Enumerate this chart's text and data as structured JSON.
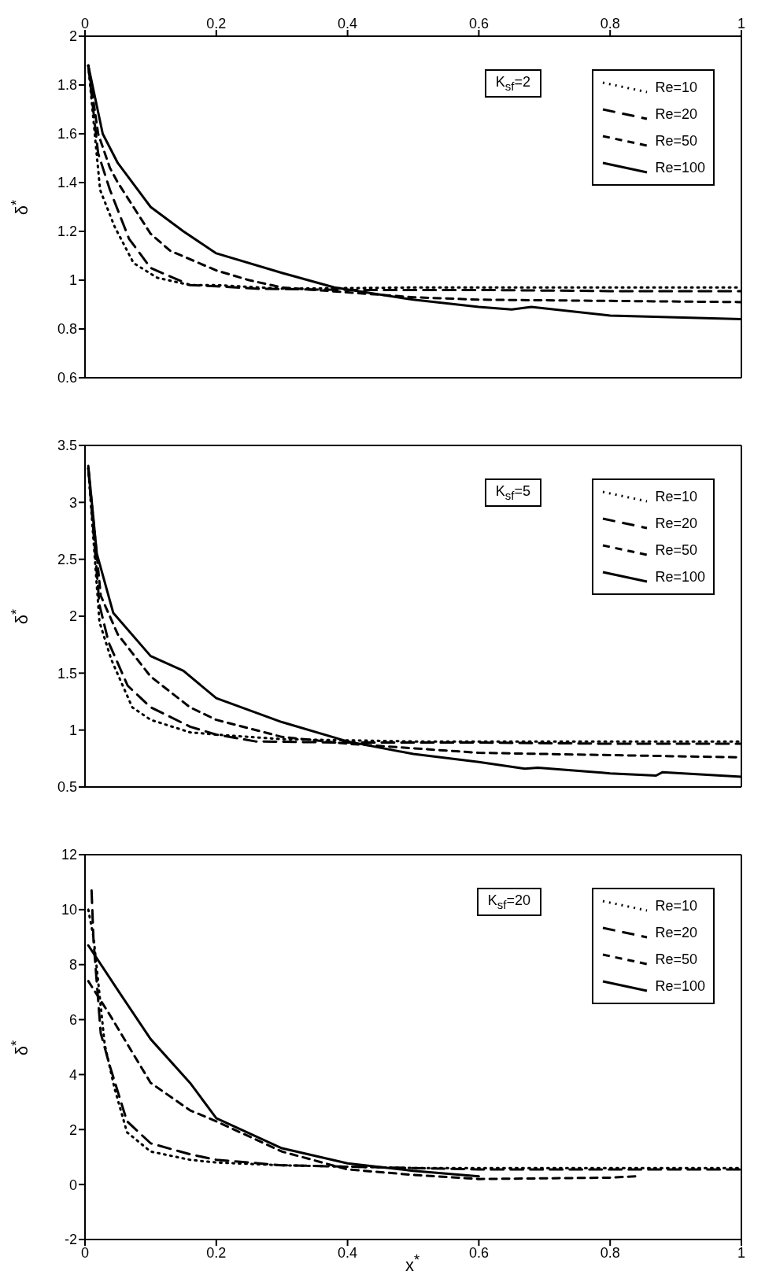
{
  "chart_data": [
    {
      "type": "line",
      "ylabel": "δ$^{*}$",
      "annotations": [
        "K$_{sf}$=2"
      ],
      "xlim": [
        0,
        1
      ],
      "xticks": [
        0,
        0.2,
        0.4,
        0.6,
        0.8,
        1
      ],
      "x2lim": [
        0,
        1
      ],
      "x2ticks": [
        0,
        0.2,
        0.4,
        0.6,
        0.8,
        1
      ],
      "ylim": [
        0.6,
        2
      ],
      "yticks": [
        0.6,
        0.8,
        1,
        1.2,
        1.4,
        1.6,
        1.8,
        2
      ],
      "tick_labels": "y",
      "legend": "top right",
      "marker": "none",
      "series": [
        {
          "name": "Re=10",
          "color": "#000000",
          "line_style": "dotted",
          "x": [
            0.005,
            0.023,
            0.045,
            0.074,
            0.11,
            0.16,
            0.2,
            0.3,
            0.5,
            0.7,
            1
          ],
          "values": [
            1.88,
            1.37,
            1.22,
            1.07,
            1.01,
            0.98,
            0.98,
            0.965,
            0.97,
            0.97,
            0.97
          ]
        },
        {
          "name": "Re=20",
          "color": "#000000",
          "line_style": "dashed",
          "x": [
            0.005,
            0.02,
            0.038,
            0.067,
            0.1,
            0.16,
            0.2,
            0.26,
            0.4,
            0.6,
            0.8,
            1
          ],
          "values": [
            1.88,
            1.52,
            1.37,
            1.17,
            1.05,
            0.98,
            0.975,
            0.965,
            0.96,
            0.96,
            0.955,
            0.955
          ]
        },
        {
          "name": "Re=50",
          "color": "#000000",
          "line_style": "dashed",
          "x": [
            0.005,
            0.02,
            0.038,
            0.05,
            0.1,
            0.13,
            0.2,
            0.25,
            0.3,
            0.4,
            0.5,
            0.6,
            0.8,
            1
          ],
          "values": [
            1.88,
            1.6,
            1.46,
            1.4,
            1.19,
            1.12,
            1.04,
            1.0,
            0.97,
            0.95,
            0.93,
            0.92,
            0.915,
            0.91
          ]
        },
        {
          "name": "Re=100",
          "color": "#000000",
          "line_style": "solid",
          "x": [
            0.005,
            0.027,
            0.05,
            0.1,
            0.15,
            0.2,
            0.3,
            0.38,
            0.5,
            0.6,
            0.65,
            0.68,
            0.8,
            1
          ],
          "values": [
            1.88,
            1.6,
            1.48,
            1.3,
            1.2,
            1.11,
            1.03,
            0.97,
            0.92,
            0.89,
            0.88,
            0.89,
            0.855,
            0.84
          ]
        }
      ]
    },
    {
      "type": "line",
      "ylabel": "δ$^{*}$",
      "annotations": [
        "K$_{sf}$=5"
      ],
      "xlim": [
        0,
        1
      ],
      "xticks": [
        0,
        0.2,
        0.4,
        0.6,
        0.8,
        1
      ],
      "ylim": [
        0.5,
        3.5
      ],
      "yticks": [
        0.5,
        1,
        1.5,
        2,
        2.5,
        3,
        3.5
      ],
      "tick_labels": "y",
      "legend": "top right",
      "marker": "none",
      "series": [
        {
          "name": "Re=10",
          "color": "#000000",
          "line_style": "dotted",
          "x": [
            0.005,
            0.022,
            0.04,
            0.072,
            0.1,
            0.16,
            0.2,
            0.3,
            0.5,
            0.7,
            1
          ],
          "values": [
            3.3,
            1.95,
            1.62,
            1.2,
            1.09,
            0.98,
            0.96,
            0.92,
            0.9,
            0.9,
            0.9
          ]
        },
        {
          "name": "Re=20",
          "color": "#000000",
          "line_style": "dashed",
          "x": [
            0.005,
            0.022,
            0.036,
            0.065,
            0.1,
            0.16,
            0.2,
            0.26,
            0.4,
            0.6,
            0.8,
            1
          ],
          "values": [
            3.3,
            2.1,
            1.77,
            1.39,
            1.2,
            1.03,
            0.96,
            0.9,
            0.89,
            0.89,
            0.88,
            0.88
          ]
        },
        {
          "name": "Re=50",
          "color": "#000000",
          "line_style": "dashed",
          "x": [
            0.005,
            0.024,
            0.05,
            0.1,
            0.16,
            0.2,
            0.3,
            0.4,
            0.6,
            0.8,
            1
          ],
          "values": [
            3.3,
            2.18,
            1.84,
            1.47,
            1.2,
            1.09,
            0.94,
            0.88,
            0.8,
            0.78,
            0.76
          ]
        },
        {
          "name": "Re=100",
          "color": "#000000",
          "line_style": "solid",
          "x": [
            0.005,
            0.018,
            0.043,
            0.1,
            0.15,
            0.2,
            0.3,
            0.4,
            0.5,
            0.6,
            0.67,
            0.69,
            0.8,
            0.87,
            0.88,
            1
          ],
          "values": [
            3.32,
            2.55,
            2.03,
            1.65,
            1.52,
            1.28,
            1.07,
            0.9,
            0.79,
            0.72,
            0.66,
            0.67,
            0.62,
            0.6,
            0.63,
            0.59
          ]
        }
      ]
    },
    {
      "type": "line",
      "xlabel": "x$^{*}$",
      "ylabel": "δ$^{*}$",
      "annotations": [
        "K$_{sf}$=20"
      ],
      "xlim": [
        0,
        1
      ],
      "xticks": [
        0,
        0.2,
        0.4,
        0.6,
        0.8,
        1
      ],
      "ylim": [
        -2,
        12
      ],
      "yticks": [
        -2,
        0,
        2,
        4,
        6,
        8,
        10,
        12
      ],
      "legend": "top right",
      "marker": "none",
      "series": [
        {
          "name": "Re=10",
          "color": "#000000",
          "line_style": "dotted",
          "x": [
            0.005,
            0.013,
            0.03,
            0.045,
            0.064,
            0.1,
            0.16,
            0.2,
            0.3,
            0.5,
            1
          ],
          "values": [
            10,
            9,
            5.1,
            3.5,
            1.9,
            1.2,
            0.9,
            0.8,
            0.7,
            0.6,
            0.6
          ]
        },
        {
          "name": "Re=20",
          "color": "#000000",
          "line_style": "dashed",
          "x": [
            0.01,
            0.013,
            0.024,
            0.038,
            0.064,
            0.1,
            0.16,
            0.2,
            0.3,
            0.5,
            0.6,
            1
          ],
          "values": [
            10.7,
            8.86,
            5.5,
            4.3,
            2.3,
            1.5,
            1.1,
            0.9,
            0.7,
            0.6,
            0.55,
            0.55
          ]
        },
        {
          "name": "Re=50",
          "color": "#000000",
          "line_style": "dashed",
          "x": [
            0.005,
            0.035,
            0.1,
            0.16,
            0.2,
            0.3,
            0.4,
            0.5,
            0.6,
            0.8,
            0.84
          ],
          "values": [
            7.4,
            6.28,
            3.7,
            2.7,
            2.3,
            1.2,
            0.55,
            0.35,
            0.2,
            0.25,
            0.3
          ]
        },
        {
          "name": "Re=100",
          "color": "#000000",
          "line_style": "solid",
          "x": [
            0.005,
            0.05,
            0.1,
            0.16,
            0.2,
            0.3,
            0.4,
            0.5,
            0.6
          ],
          "values": [
            8.7,
            7.07,
            5.29,
            3.7,
            2.41,
            1.32,
            0.77,
            0.5,
            0.3
          ]
        }
      ]
    }
  ]
}
